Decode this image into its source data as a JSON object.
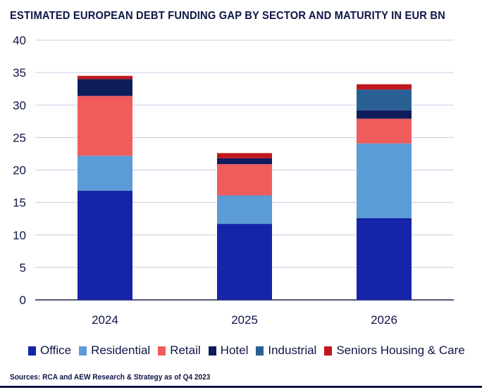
{
  "chart_data": {
    "type": "bar",
    "stacked": true,
    "title": "ESTIMATED EUROPEAN DEBT FUNDING GAP BY SECTOR AND MATURITY IN EUR BN",
    "xlabel": "",
    "ylabel": "",
    "ylim": [
      0,
      40
    ],
    "yticks": [
      0,
      5,
      10,
      15,
      20,
      25,
      30,
      35,
      40
    ],
    "grid": true,
    "legend_position": "bottom",
    "categories": [
      "2024",
      "2025",
      "2026"
    ],
    "series": [
      {
        "name": "Office",
        "color": "#1524a8",
        "values": [
          16.8,
          11.7,
          12.6
        ]
      },
      {
        "name": "Residential",
        "color": "#5b9bd6",
        "values": [
          5.4,
          4.4,
          11.5
        ]
      },
      {
        "name": "Retail",
        "color": "#f05c5c",
        "values": [
          9.2,
          4.8,
          3.8
        ]
      },
      {
        "name": "Hotel",
        "color": "#0f1c5c",
        "values": [
          2.6,
          0.9,
          1.3
        ]
      },
      {
        "name": "Industrial",
        "color": "#2a5f94",
        "values": [
          0.0,
          0.0,
          3.2
        ]
      },
      {
        "name": "Seniors Housing & Care",
        "color": "#c0171d",
        "values": [
          0.5,
          0.8,
          0.8
        ]
      }
    ]
  },
  "source": "Sources: RCA and AEW Research & Strategy as of Q4 2023"
}
